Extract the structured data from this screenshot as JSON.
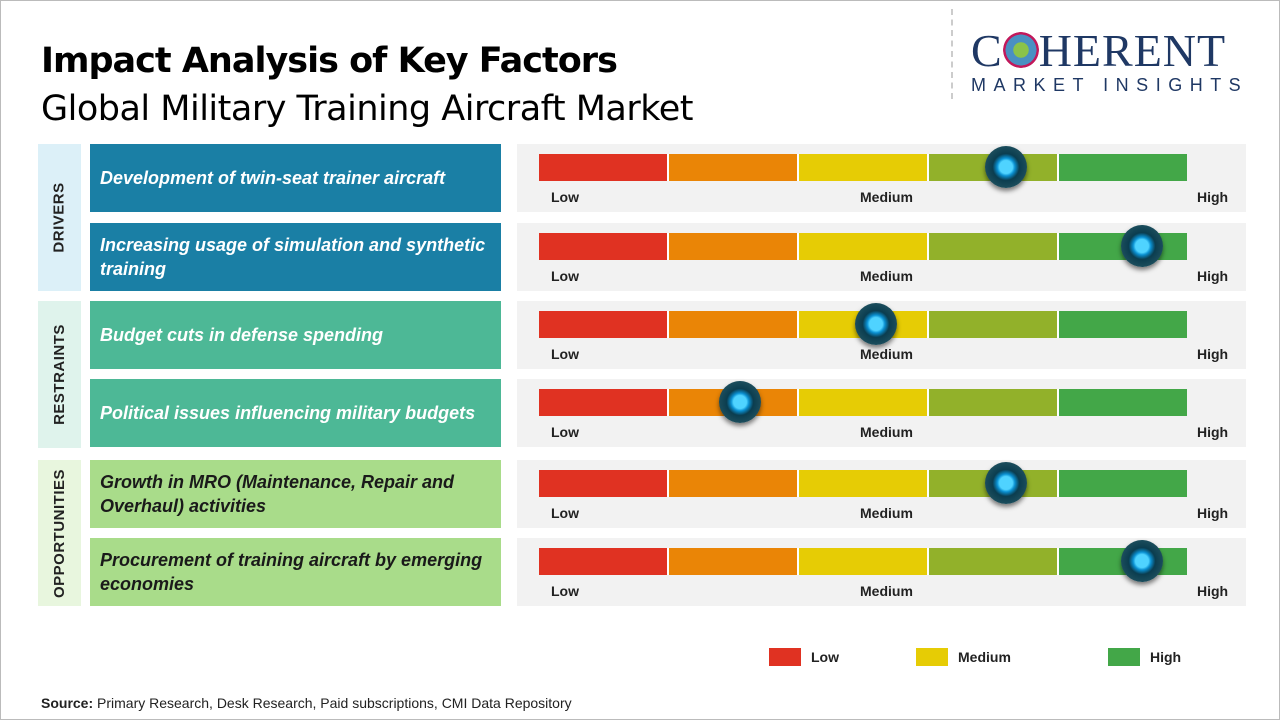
{
  "header": {
    "title": "Impact Analysis of Key Factors",
    "subtitle": "Global Military Training Aircraft Market"
  },
  "logo": {
    "line1": "COHERENT",
    "line2": "MARKET INSIGHTS"
  },
  "colors": {
    "low": "#e03222",
    "low_medium": "#ea8506",
    "medium": "#e6cc05",
    "medium_high": "#92b12a",
    "high": "#43a748",
    "drivers": "#1a7fa5",
    "restraints": "#4db896",
    "opportunities": "#a9dc8a"
  },
  "categories": [
    {
      "label": "DRIVERS",
      "bg": "#dcf0f8"
    },
    {
      "label": "RESTRAINTS",
      "bg": "#dff3ec"
    },
    {
      "label": "OPPORTUNITIES",
      "bg": "#e8f6de"
    }
  ],
  "chart_data": {
    "type": "gauge",
    "scale_labels": [
      "Low",
      "Medium",
      "High"
    ],
    "segments": [
      "#e03222",
      "#ea8506",
      "#e6cc05",
      "#92b12a",
      "#43a748"
    ],
    "factors": [
      {
        "category": "DRIVERS",
        "label": "Development of twin-seat trainer aircraft",
        "impact": 0.72
      },
      {
        "category": "DRIVERS",
        "label": "Increasing usage of simulation and synthetic training",
        "impact": 0.93
      },
      {
        "category": "RESTRAINTS",
        "label": "Budget cuts in defense spending",
        "impact": 0.52
      },
      {
        "category": "RESTRAINTS",
        "label": "Political issues influencing military budgets",
        "impact": 0.31
      },
      {
        "category": "OPPORTUNITIES",
        "label": "Growth in MRO (Maintenance, Repair and Overhaul) activities",
        "impact": 0.72
      },
      {
        "category": "OPPORTUNITIES",
        "label": "Procurement of training aircraft by emerging economies",
        "impact": 0.93
      }
    ],
    "legend": [
      {
        "label": "Low",
        "color": "#e03222"
      },
      {
        "label": "Medium",
        "color": "#e6cc05"
      },
      {
        "label": "High",
        "color": "#43a748"
      }
    ]
  },
  "footer": {
    "source_label": "Source:",
    "source_text": " Primary Research, Desk Research, Paid subscriptions, CMI Data Repository"
  }
}
